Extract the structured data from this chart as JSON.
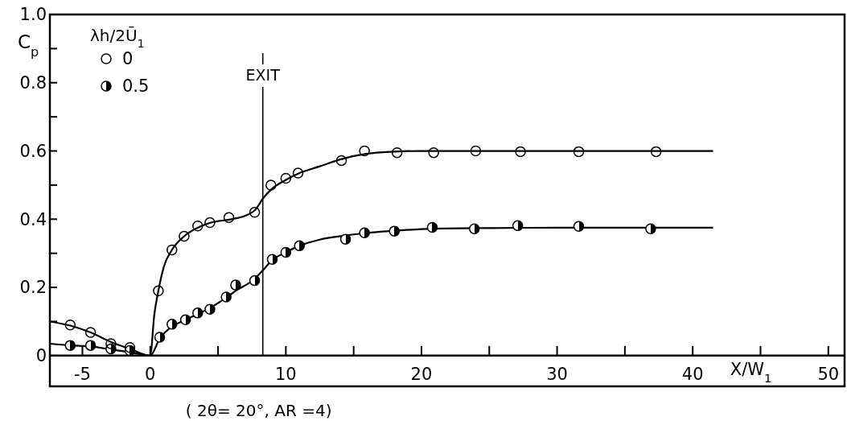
{
  "chart_data": {
    "type": "scatter",
    "xlabel": "X/W$_{1}$",
    "ylabel": "C$_{p}$",
    "legend_title": "λh/2Ū$_{1}$",
    "legend": "top left",
    "xlim": [
      -7.4,
      51.2
    ],
    "ylim": [
      -0.09,
      1.0
    ],
    "xticks": [
      -5,
      0,
      {
        "value": 5,
        "label": null
      },
      10,
      {
        "value": 15,
        "label": null
      },
      20,
      {
        "value": 25,
        "label": null
      },
      30,
      {
        "value": 35,
        "label": null
      },
      40,
      {
        "value": 45,
        "label": null
      },
      50
    ],
    "yticks": [
      0,
      {
        "value": 0.1,
        "label": null
      },
      0.2,
      {
        "value": 0.3,
        "label": null
      },
      0.4,
      {
        "value": 0.5,
        "label": null
      },
      0.6,
      {
        "value": 0.7,
        "label": null
      },
      0.8,
      {
        "value": 0.9,
        "label": null
      },
      {
        "value": 1.0,
        "label": "1.0"
      }
    ],
    "ref_lines": [
      {
        "axis": "x",
        "value": 8.3,
        "label": "EXIT",
        "color": "#000000"
      }
    ],
    "annotations": [
      "( 2θ= 20°, AR =4)"
    ],
    "series": [
      {
        "name": "0",
        "marker": "circle",
        "color": "#000000",
        "x": [
          -5.9,
          -4.4,
          -2.9,
          -1.5,
          0.6,
          1.6,
          2.5,
          3.5,
          4.4,
          5.8,
          7.7,
          8.9,
          10.0,
          10.9,
          14.1,
          15.8,
          18.2,
          20.9,
          24.0,
          27.3,
          31.6,
          37.3
        ],
        "values": [
          0.09,
          0.068,
          0.035,
          0.024,
          0.19,
          0.31,
          0.35,
          0.38,
          0.39,
          0.405,
          0.42,
          0.5,
          0.52,
          0.535,
          0.572,
          0.6,
          0.595,
          0.595,
          0.6,
          0.598,
          0.598,
          0.598
        ]
      },
      {
        "name": "0.5",
        "marker": "circle",
        "color": "#000000",
        "x": [
          -5.9,
          -4.4,
          -2.9,
          -1.5,
          0.7,
          1.6,
          2.6,
          3.5,
          4.4,
          5.6,
          6.3,
          7.7,
          9.0,
          10.0,
          11.0,
          14.4,
          15.8,
          18.0,
          20.8,
          23.9,
          27.1,
          31.6,
          36.9
        ],
        "values": [
          0.03,
          0.03,
          0.02,
          0.015,
          0.054,
          0.092,
          0.105,
          0.125,
          0.136,
          0.172,
          0.207,
          0.22,
          0.282,
          0.303,
          0.322,
          0.341,
          0.36,
          0.365,
          0.376,
          0.372,
          0.381,
          0.379,
          0.372
        ]
      },
      {
        "type": "line",
        "color": "#000000",
        "x": [
          -7.4,
          -5.9,
          -4.4,
          -2.9,
          -1.5,
          0,
          0.3,
          0.6,
          1.0,
          1.6,
          2.5,
          3.5,
          4.5,
          6,
          7,
          7.8,
          8.3,
          9,
          10,
          11,
          12.5,
          14,
          16,
          18,
          20,
          30,
          41.5
        ],
        "values": [
          0.1,
          0.088,
          0.068,
          0.04,
          0.02,
          0,
          0.12,
          0.19,
          0.26,
          0.31,
          0.35,
          0.375,
          0.39,
          0.4,
          0.41,
          0.43,
          0.46,
          0.49,
          0.515,
          0.535,
          0.555,
          0.575,
          0.592,
          0.598,
          0.6,
          0.6,
          0.6
        ]
      },
      {
        "type": "line",
        "color": "#000000",
        "x": [
          -7.4,
          -5.9,
          -4.4,
          -2.9,
          -1.5,
          0,
          0.7,
          1.6,
          2.6,
          3.5,
          4.4,
          5.6,
          6.3,
          7.7,
          8.3,
          9,
          10,
          11,
          12.5,
          14.4,
          16,
          18,
          20.8,
          25,
          30,
          41.5
        ],
        "values": [
          0.035,
          0.03,
          0.027,
          0.018,
          0.01,
          0,
          0.05,
          0.085,
          0.105,
          0.122,
          0.14,
          0.17,
          0.19,
          0.225,
          0.25,
          0.28,
          0.303,
          0.322,
          0.34,
          0.352,
          0.36,
          0.366,
          0.372,
          0.374,
          0.375,
          0.375
        ]
      }
    ]
  }
}
